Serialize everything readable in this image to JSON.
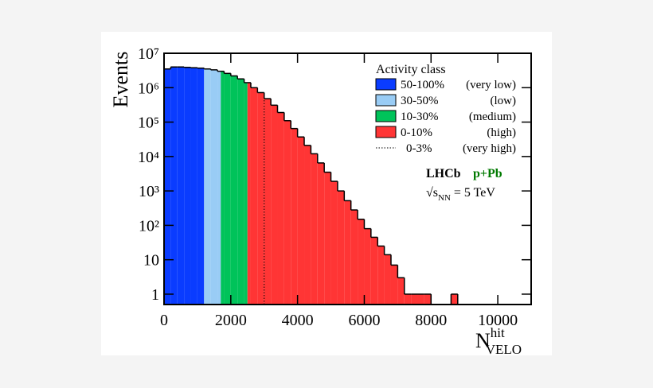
{
  "chart_data": {
    "type": "histogram",
    "y_label": "Events",
    "x_label": {
      "main": "N",
      "sup": "hit",
      "sub": "VELO"
    },
    "log_y": true,
    "xlim": [
      0,
      11000
    ],
    "ylim": [
      0.5,
      10000000
    ],
    "xticks": [
      0,
      2000,
      4000,
      6000,
      8000,
      10000
    ],
    "yticks": [
      1,
      10,
      {
        "value": 100,
        "label": "10²"
      },
      {
        "value": 1000,
        "label": "10³"
      },
      {
        "value": 10000,
        "label": "10⁴"
      },
      {
        "value": 100000,
        "label": "10⁵"
      },
      {
        "value": 1000000,
        "label": "10⁶"
      },
      {
        "value": 10000000,
        "label": "10⁷"
      }
    ],
    "bins": [
      0,
      200,
      400,
      600,
      800,
      1000,
      1200,
      1400,
      1600,
      1800,
      2000,
      2200,
      2400,
      2600,
      2800,
      3000,
      3200,
      3400,
      3600,
      3800,
      4000,
      4200,
      4400,
      4600,
      4800,
      5000,
      5200,
      5400,
      5600,
      5800,
      6000,
      6200,
      6400,
      6600,
      6800,
      7000,
      7200,
      7400,
      7600,
      7800,
      8000,
      8200,
      8400,
      8600,
      8800
    ],
    "values": [
      3500000,
      4000000,
      4000000,
      3900000,
      3800000,
      3700000,
      3500000,
      3300000,
      3000000,
      2600000,
      2200000,
      1800000,
      1400000,
      1000000,
      720000,
      480000,
      310000,
      190000,
      110000,
      65000,
      37000,
      21000,
      12000,
      6500,
      3500,
      1900,
      1000,
      520,
      280,
      150,
      80,
      45,
      25,
      14,
      7,
      3,
      1,
      1,
      1,
      1,
      0,
      0,
      0,
      1
    ],
    "legend_title": "Activity class",
    "classes": [
      {
        "label": "50-100%",
        "desc": "(very low)",
        "color": "#0a3cff",
        "from": 0
      },
      {
        "label": "30-50%",
        "desc": "(low)",
        "color": "#99ccf5",
        "from": 1200
      },
      {
        "label": "10-30%",
        "desc": "(medium)",
        "color": "#00c35a",
        "from": 1700
      },
      {
        "label": "0-10%",
        "desc": "(high)",
        "color": "#ff3535",
        "from": 2500
      },
      {
        "label": "0-3%",
        "desc": "(very high)",
        "line": "dotted",
        "from": 3000
      }
    ],
    "experiment": "LHCb",
    "system": "p+Pb",
    "energy": {
      "main": "√s",
      "sub": "NN",
      "rest": "= 5 TeV"
    }
  }
}
